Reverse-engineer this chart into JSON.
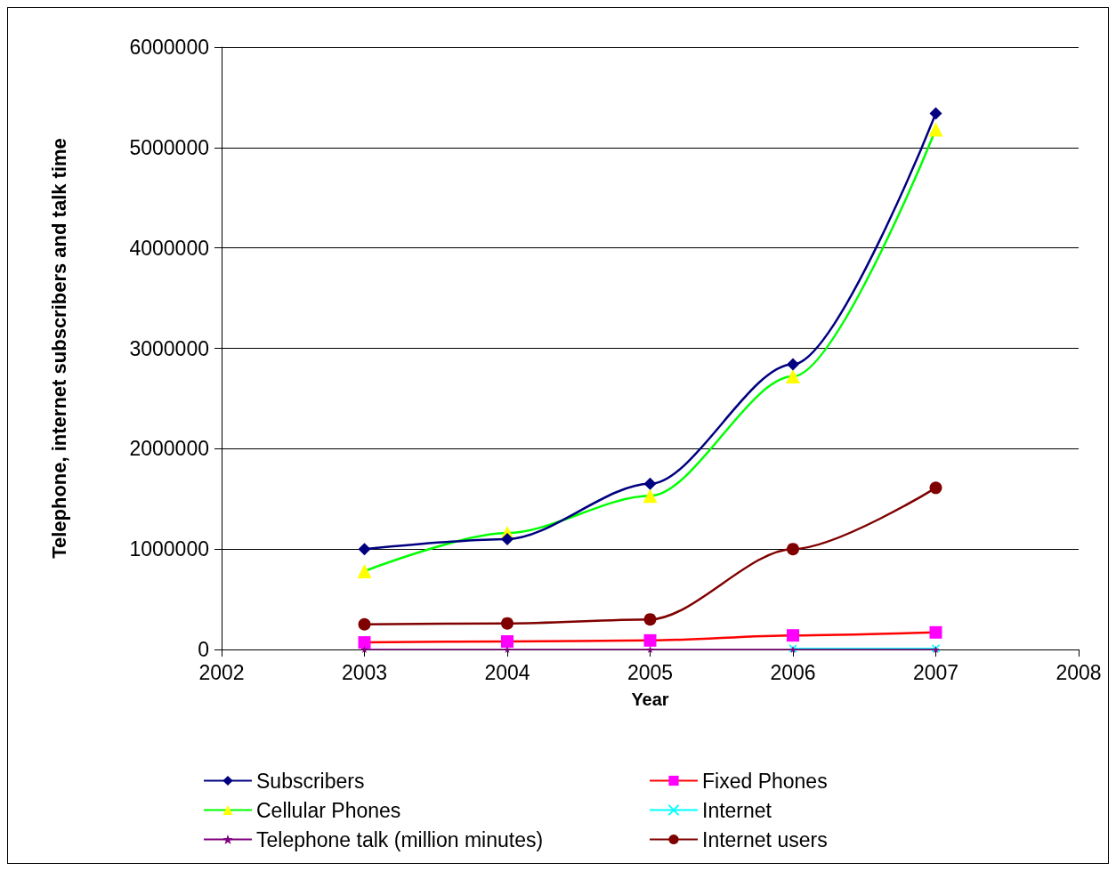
{
  "chart_data": {
    "type": "line",
    "xlabel": "Year",
    "ylabel": "Telephone, internet subscribers and talk time",
    "x": [
      2003,
      2004,
      2005,
      2006,
      2007
    ],
    "xlim": [
      2002,
      2008
    ],
    "xticks": [
      2002,
      2003,
      2004,
      2005,
      2006,
      2007,
      2008
    ],
    "ylim": [
      0,
      6000000
    ],
    "yticks": [
      0,
      1000000,
      2000000,
      3000000,
      4000000,
      5000000,
      6000000
    ],
    "grid": "y",
    "legend": "bottom",
    "series": [
      {
        "name": "Subscribers",
        "color": "#000080",
        "marker": "diamond",
        "colors": [
          "#000080",
          "#000080",
          "#000080",
          "#000080",
          "#000080"
        ],
        "values": [
          1000000,
          1100000,
          1650000,
          2840000,
          5340000
        ]
      },
      {
        "name": "Cellular Phones",
        "color": "#00ff00",
        "marker": "triangle",
        "colors": [
          "#ffff00",
          "#ffff00",
          "#ffff00",
          "#ffff00",
          "#ffff00"
        ],
        "values": [
          780000,
          1160000,
          1530000,
          2720000,
          5180000
        ]
      },
      {
        "name": "Telephone talk (million minutes)",
        "color": "#800080",
        "marker": "star",
        "colors": [
          "#800080",
          "#800080",
          "#800080",
          "#800080",
          "#800080"
        ],
        "values": [
          0,
          0,
          0,
          0,
          0
        ]
      },
      {
        "name": "Fixed Phones",
        "color": "#ff0000",
        "marker": "square",
        "colors": [
          "#ff00ff",
          "#ff00ff",
          "#ff00ff",
          "#ff00ff",
          "#ff00ff"
        ],
        "values": [
          70000,
          80000,
          90000,
          140000,
          170000
        ]
      },
      {
        "name": "Internet",
        "color": "#00ffff",
        "marker": "cross",
        "colors": [
          null,
          null,
          null,
          "#00ffff",
          "#00ffff"
        ],
        "values": [
          null,
          null,
          null,
          10000,
          10000
        ]
      },
      {
        "name": "Internet users",
        "color": "#800000",
        "marker": "circle",
        "colors": [
          "#800000",
          "#800000",
          "#800000",
          "#800000",
          "#800000"
        ],
        "values": [
          250000,
          260000,
          300000,
          1000000,
          1610000
        ]
      }
    ]
  }
}
